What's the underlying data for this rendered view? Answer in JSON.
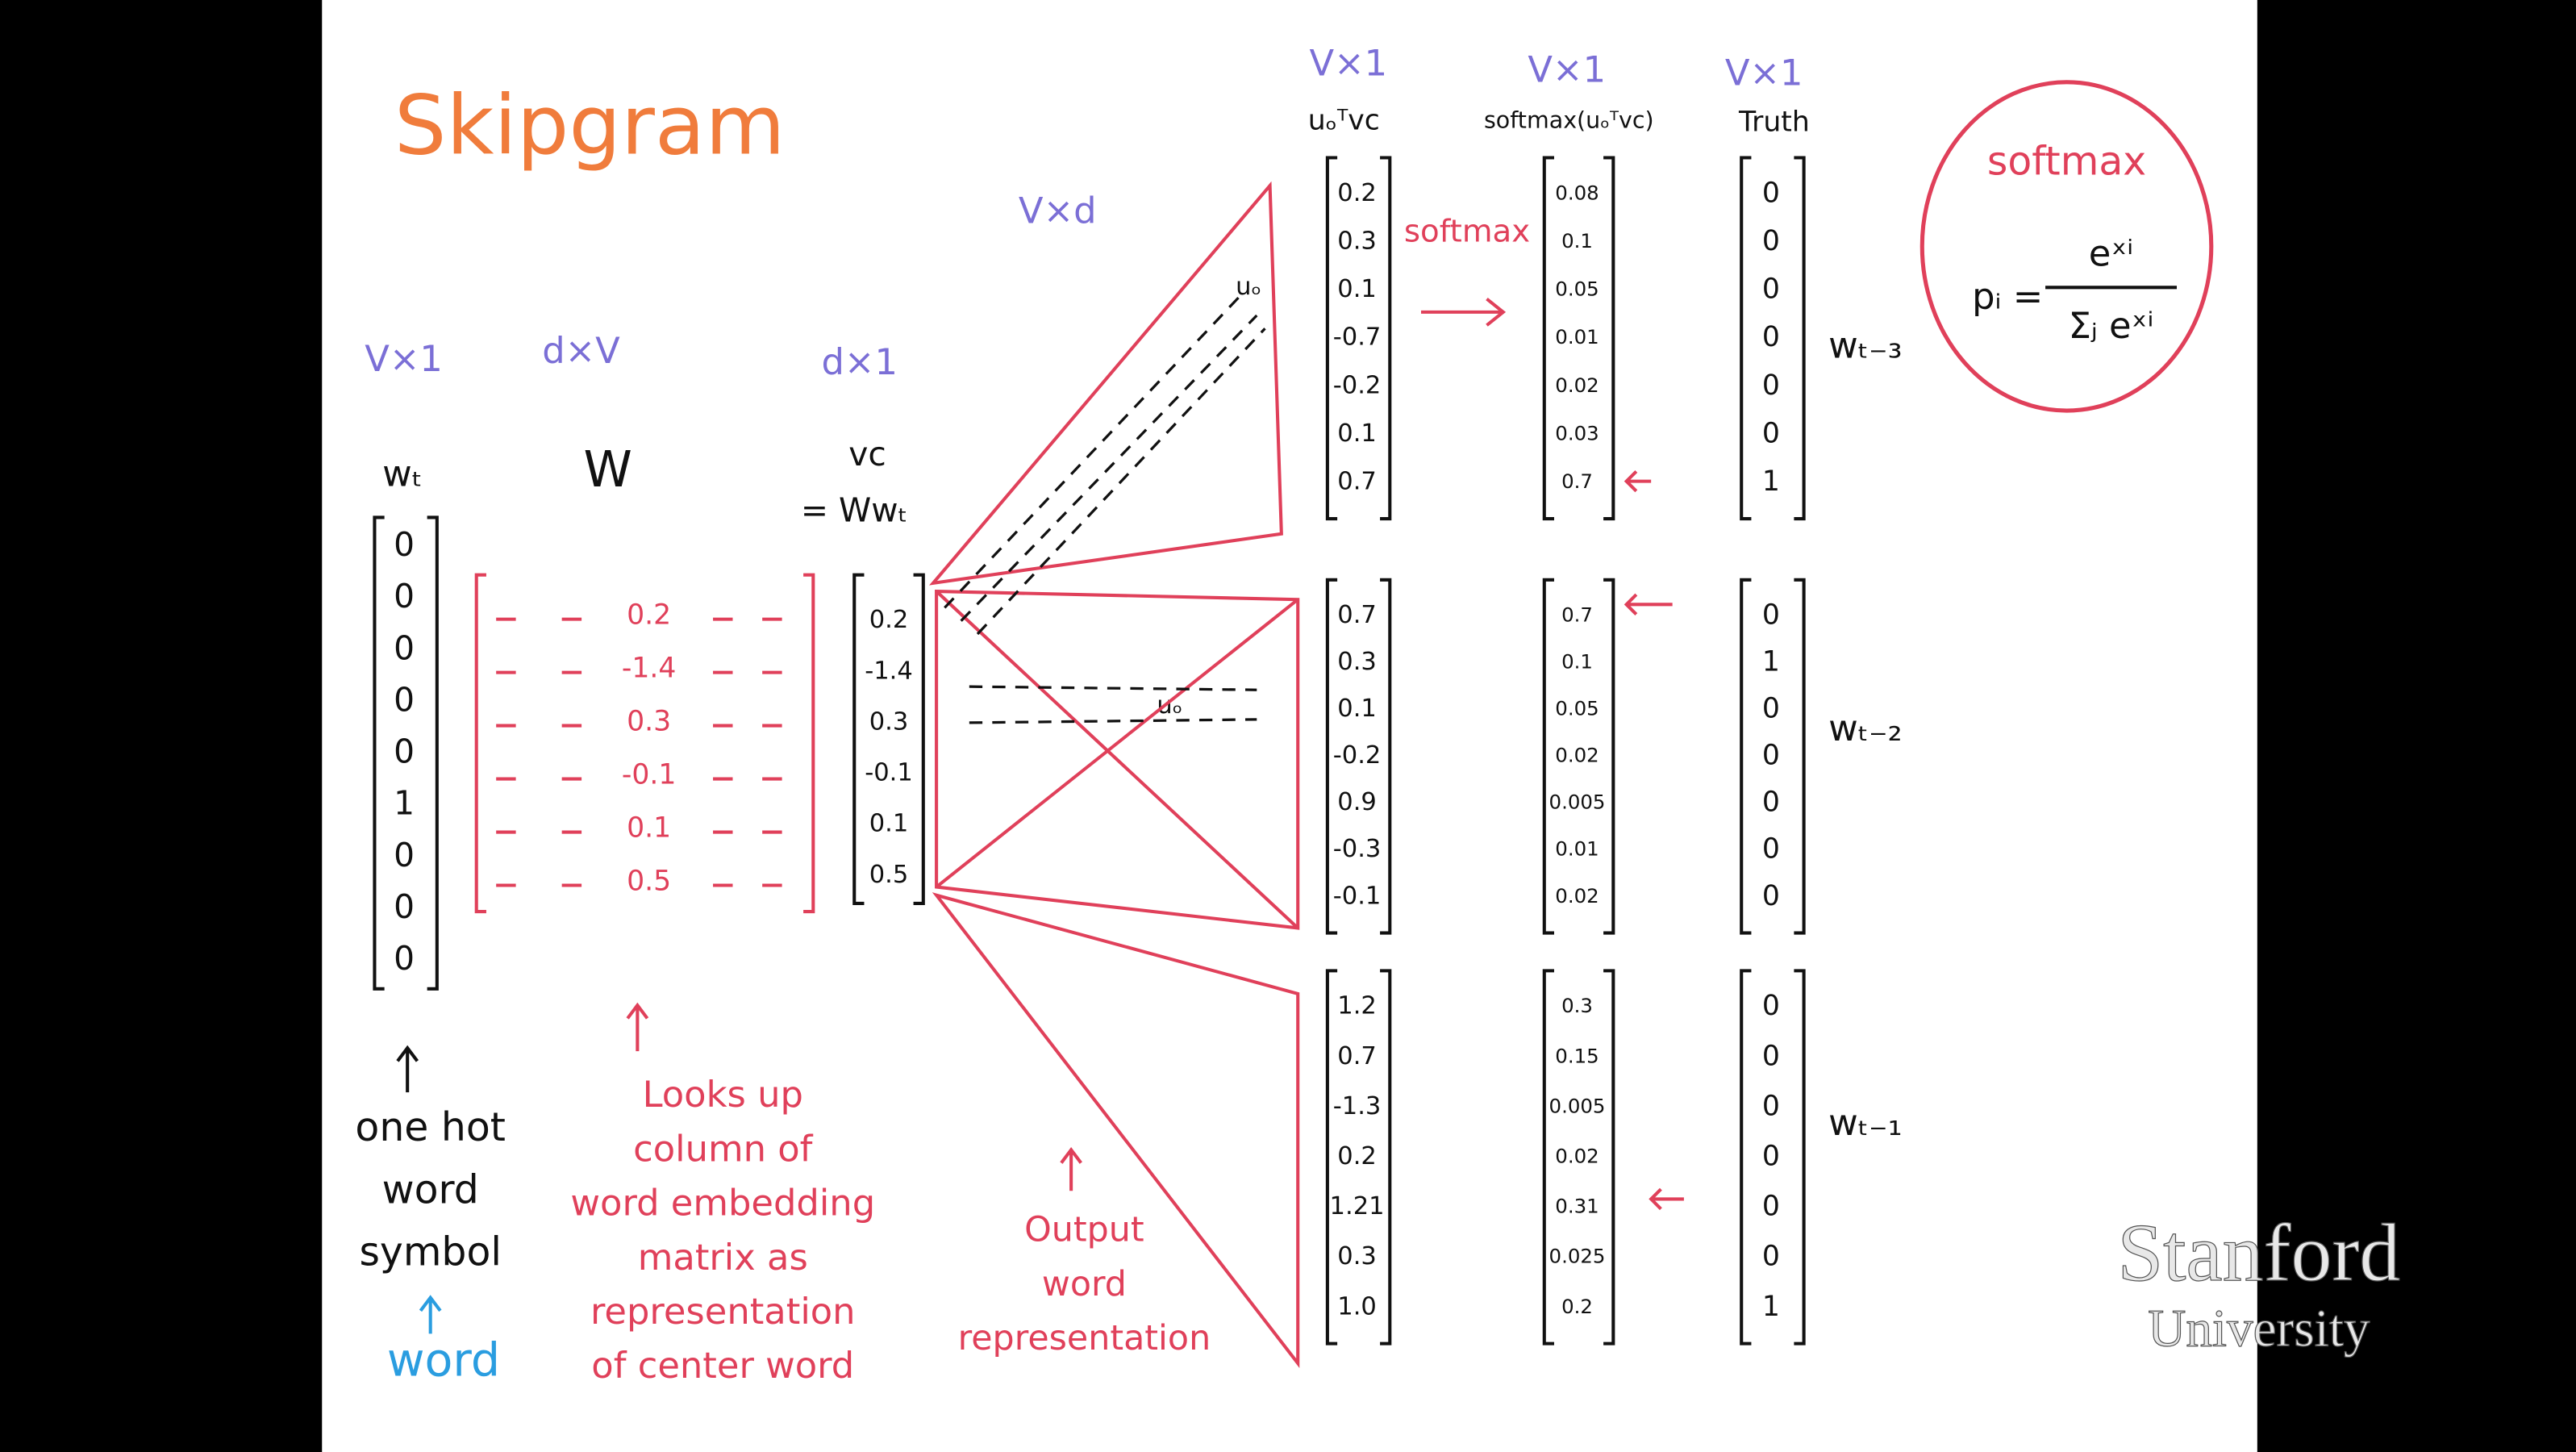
{
  "title": "Skipgram",
  "dimensions": {
    "one_hot": "V×1",
    "W": "d×V",
    "center": "d×1",
    "output": "V×d",
    "scores": "V×1",
    "softmax": "V×1",
    "truth": "V×1"
  },
  "headers": {
    "scores": "uₒᵀvc",
    "softmax": "softmax(uₒᵀvc)",
    "truth": "Truth"
  },
  "symbols": {
    "one_hot": "wₜ",
    "W": "W",
    "center": "vc",
    "center_eq": "= Wwₜ",
    "u_o_top": "uₒ",
    "u_o_mid": "uₒ",
    "softmax_arrow": "softmax"
  },
  "one_hot": [
    "0",
    "0",
    "0",
    "0",
    "0",
    "1",
    "0",
    "0",
    "0"
  ],
  "W_column": [
    "0.2",
    "-1.4",
    "0.3",
    "-0.1",
    "0.1",
    "0.5"
  ],
  "center_vector": [
    "0.2",
    "-1.4",
    "0.3",
    "-0.1",
    "0.1",
    "0.5"
  ],
  "groups": [
    {
      "scores": [
        "0.2",
        "0.3",
        "0.1",
        "-0.7",
        "-0.2",
        "0.1",
        "0.7"
      ],
      "softmax": [
        "0.08",
        "0.1",
        "0.05",
        "0.01",
        "0.02",
        "0.03",
        "0.7"
      ],
      "truth": [
        "0",
        "0",
        "0",
        "0",
        "0",
        "0",
        "1"
      ],
      "label": "wₜ₋₃"
    },
    {
      "scores": [
        "0.7",
        "0.3",
        "0.1",
        "-0.2",
        "0.9",
        "-0.3",
        "-0.1"
      ],
      "softmax": [
        "0.7",
        "0.1",
        "0.05",
        "0.02",
        "0.005",
        "0.01",
        "0.02"
      ],
      "truth": [
        "0",
        "1",
        "0",
        "0",
        "0",
        "0",
        "0"
      ],
      "label": "wₜ₋₂"
    },
    {
      "scores": [
        "1.2",
        "0.7",
        "-1.3",
        "0.2",
        "1.21",
        "0.3",
        "1.0"
      ],
      "softmax": [
        "0.3",
        "0.15",
        "0.005",
        "0.02",
        "0.31",
        "0.025",
        "0.2"
      ],
      "truth": [
        "0",
        "0",
        "0",
        "0",
        "0",
        "0",
        "1"
      ],
      "label": "wₜ₋₁"
    }
  ],
  "softmax_box": {
    "title": "softmax",
    "lhs": "pᵢ =",
    "numerator": "eˣⁱ",
    "denominator": "Σⱼ eˣⁱ"
  },
  "annotations": {
    "one_hot": [
      "one hot",
      "word",
      "symbol"
    ],
    "word": "word",
    "lookup": [
      "Looks up",
      "column of",
      "word embedding",
      "matrix as",
      "representation",
      "of center word"
    ],
    "output": [
      "Output",
      "word",
      "representation"
    ]
  },
  "logo": {
    "name": "Stanford",
    "sub": "University"
  }
}
